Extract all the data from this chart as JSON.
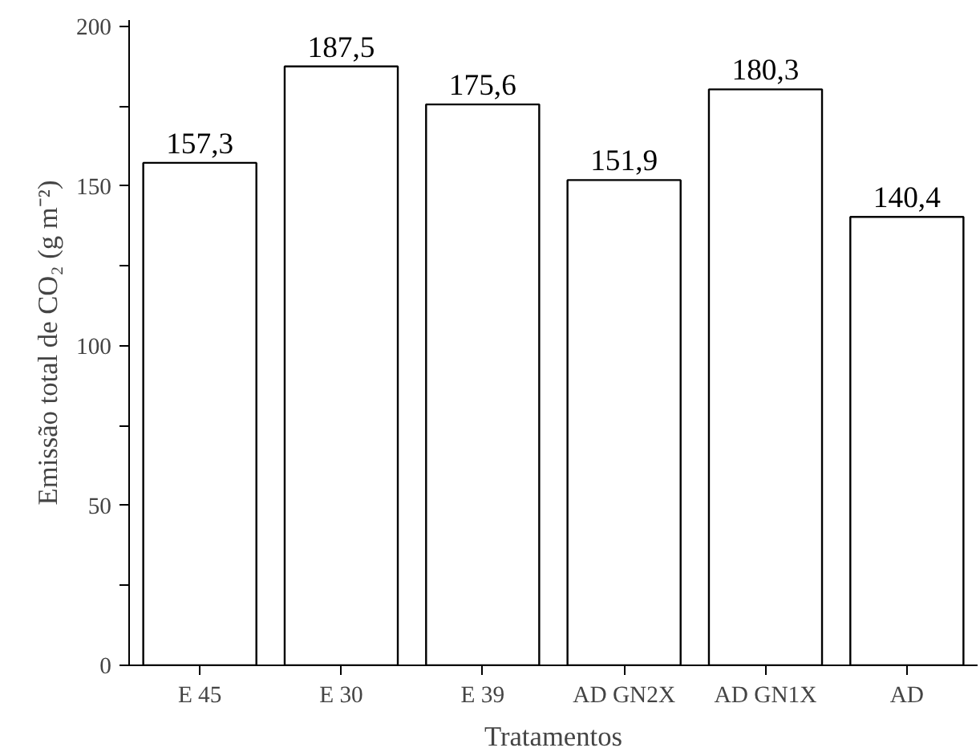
{
  "chart_data": {
    "type": "bar",
    "xlabel": "Tratamentos",
    "ylabel": "Emissão total de CO₂ (g m⁻²)",
    "categories": [
      "E 45",
      "E 30",
      "E 39",
      "AD GN2X",
      "AD GN1X",
      "AD"
    ],
    "values": [
      157.3,
      187.5,
      175.6,
      151.9,
      180.3,
      140.4
    ],
    "value_labels": [
      "157,3",
      "187,5",
      "175,6",
      "151,9",
      "180,3",
      "140,4"
    ],
    "color": "#ffffff",
    "ylim": [
      0,
      202
    ],
    "yticks": [
      0,
      {
        "value": 25,
        "label": null
      },
      50,
      {
        "value": 75,
        "label": null
      },
      100,
      {
        "value": 125,
        "label": null
      },
      150,
      {
        "value": 175,
        "label": null
      },
      200
    ],
    "grid": false
  }
}
